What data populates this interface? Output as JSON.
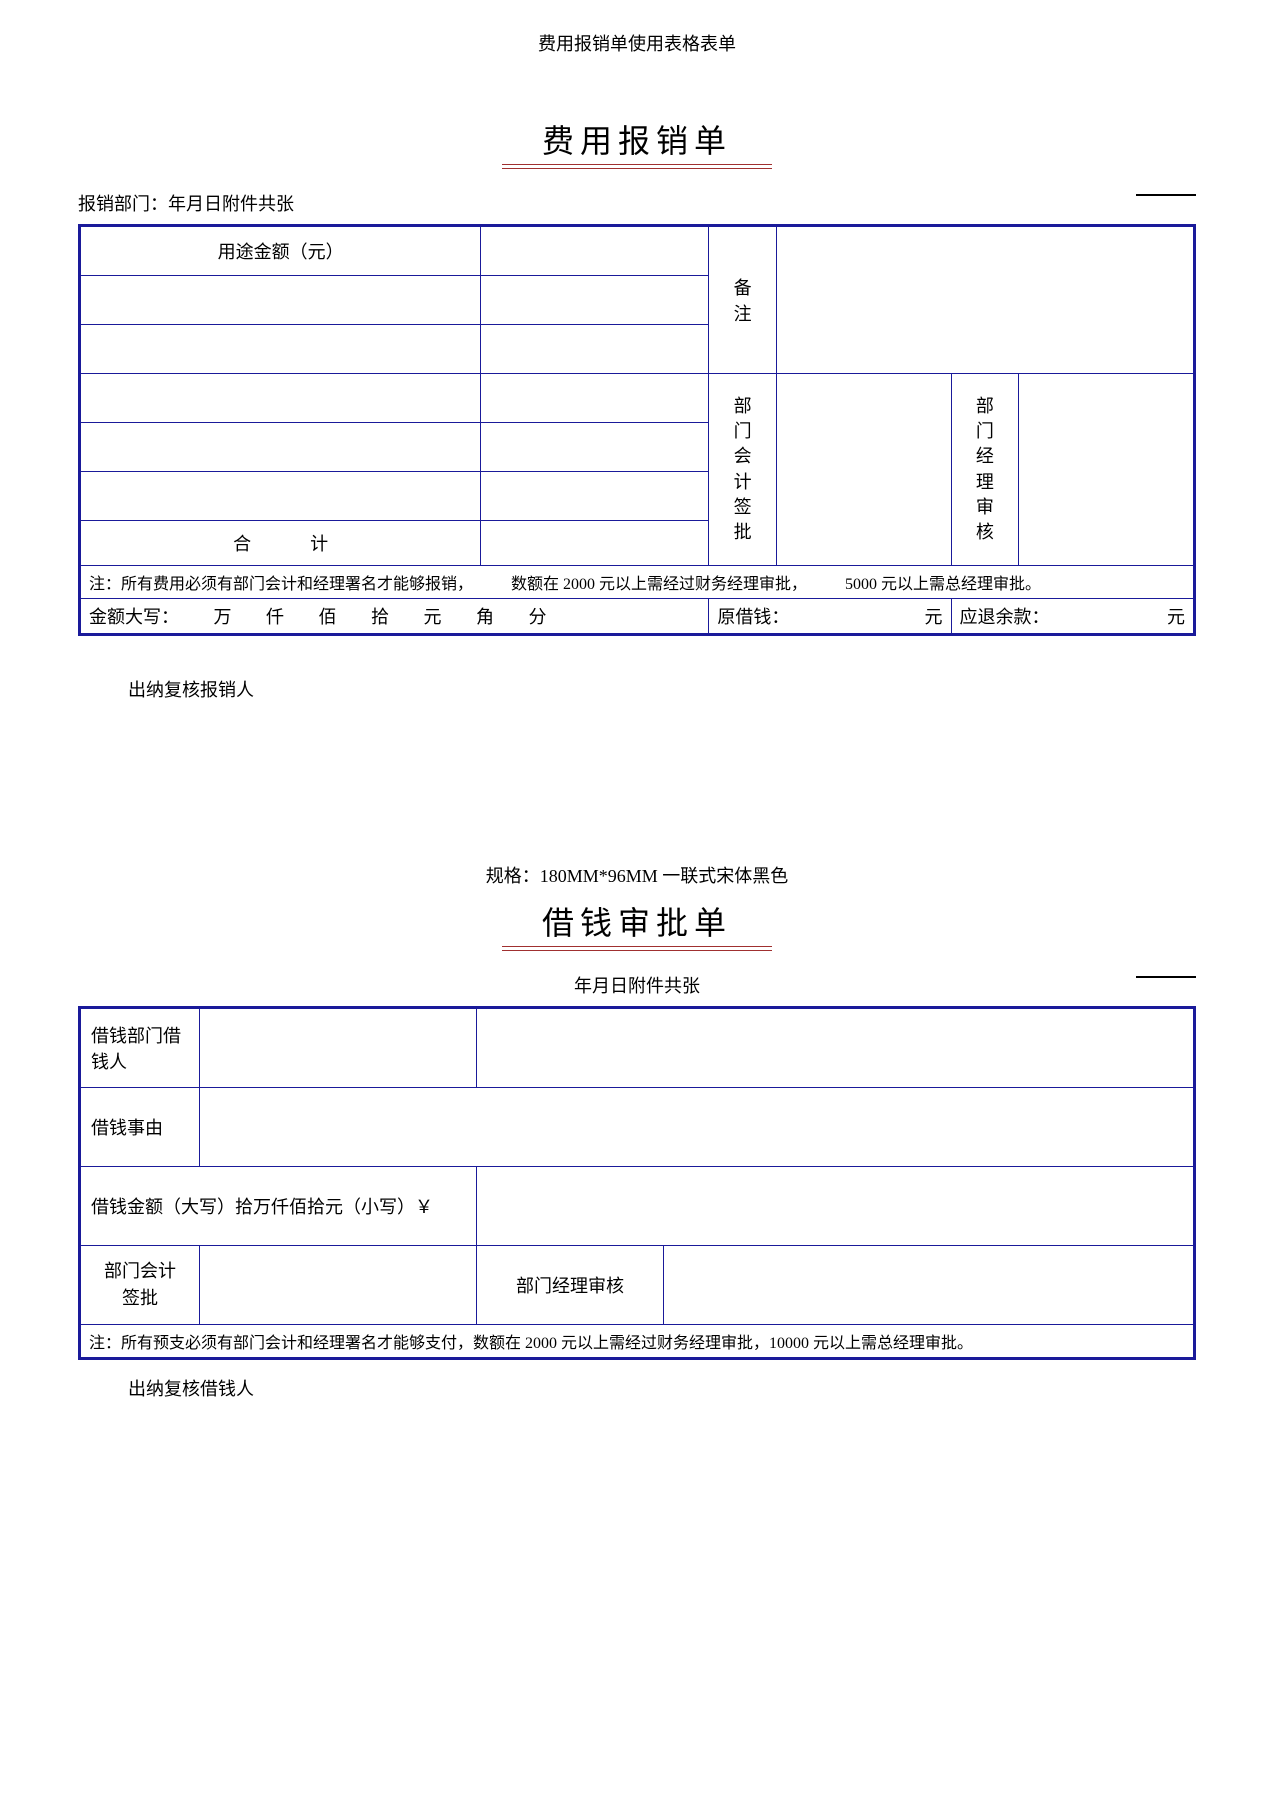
{
  "colors": {
    "tableBorder": "#1a1a9a",
    "titleUnderline": "#a03030",
    "text": "#000000",
    "background": "#ffffff"
  },
  "docHeader": "费用报销单使用表格表单",
  "form1": {
    "title": "费用报销单",
    "metaLine": "报销部门：年月日附件共张",
    "header_usage_amount": "用途金额（元）",
    "remark_label": "备注",
    "dept_acct_label": "部门会计签批",
    "dept_mgr_label": "部门经理审核",
    "total_label_1": "合",
    "total_label_2": "计",
    "note_1": "注：所有费用必须有部门会计和经理署名才能够报销，",
    "note_2": "数额在 2000 元以上需经过财务经理审批，",
    "note_3": "5000 元以上需总经理审批。",
    "amount_words_label": "金额大写：",
    "w_wan": "万",
    "w_qian": "仟",
    "w_bai": "佰",
    "w_shi": "拾",
    "w_yuan": "元",
    "w_jiao": "角",
    "w_fen": "分",
    "orig_loan_label": "原借钱：",
    "orig_loan_unit": "元",
    "refund_label": "应退余款：",
    "refund_unit": "元",
    "footer": "出纳复核报销人"
  },
  "spec": "规格：180MM*96MM 一联式宋体黑色",
  "form2": {
    "title": "借钱审批单",
    "metaLine": "年月日附件共张",
    "row1_label": "借钱部门借钱人",
    "row2_label": "借钱事由",
    "row3_label": "借钱金额（大写）拾万仟佰拾元（小写）￥",
    "row4_left": "部门会计签批",
    "row4_right": "部门经理审核",
    "note": "注：所有预支必须有部门会计和经理署名才能够支付，数额在 2000 元以上需经过财务经理审批，10000 元以上需总经理审批。",
    "footer": "出纳复核借钱人"
  }
}
